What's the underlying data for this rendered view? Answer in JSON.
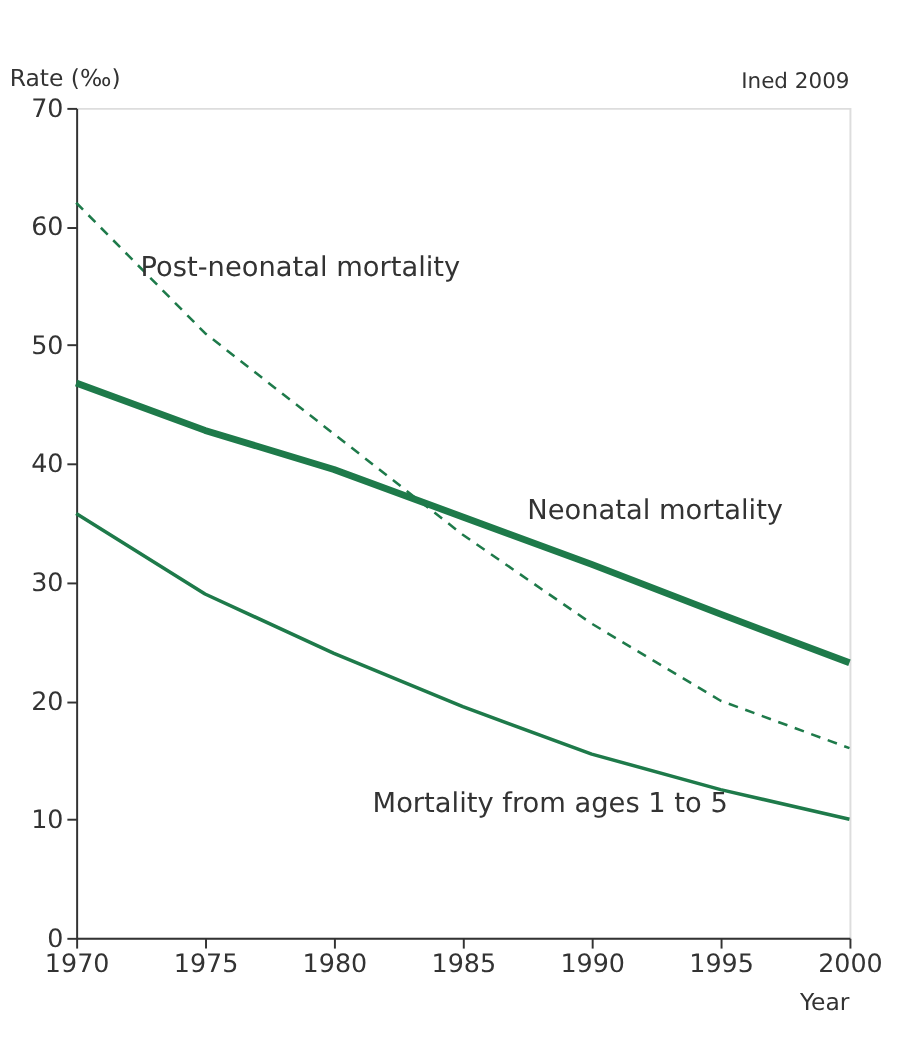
{
  "chart_data": {
    "type": "line",
    "ylabel": "Rate (‰)",
    "xlabel": "Year",
    "annotations": [
      "Ined 2009"
    ],
    "x": [
      1970,
      1975,
      1980,
      1985,
      1990,
      1995,
      2000
    ],
    "series": [
      {
        "name": "Post-neonatal mortality",
        "color": "#1e7a4a",
        "line_style": "dashed",
        "values": [
          62,
          51,
          42.5,
          34,
          26.5,
          20,
          16
        ]
      },
      {
        "name": "Neonatal mortality",
        "color": "#1e7a4a",
        "line_style": "solid",
        "values": [
          46.8,
          42.8,
          39.5,
          35.5,
          31.5,
          27.3,
          23.2
        ]
      },
      {
        "name": "Mortality from ages 1 to 5",
        "color": "#1e7a4a",
        "line_style": "solid",
        "values": [
          35.8,
          29,
          24,
          19.5,
          15.5,
          12.5,
          10
        ]
      }
    ],
    "xlim": [
      1970,
      2000
    ],
    "xticks": [
      1970,
      1975,
      1980,
      1985,
      1990,
      1995,
      2000
    ],
    "ylim": [
      0,
      70
    ],
    "yticks": [
      0,
      10,
      20,
      30,
      40,
      50,
      60,
      70
    ],
    "grid": false,
    "marker": "none"
  }
}
